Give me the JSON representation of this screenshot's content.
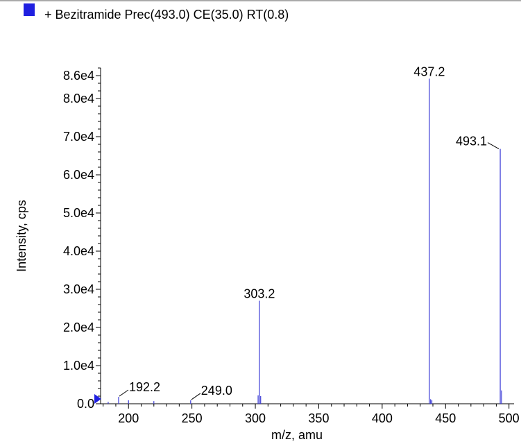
{
  "chart_data": {
    "type": "bar",
    "legend": {
      "label": "+ Bezitramide Prec(493.0) CE(35.0) RT(0.8)",
      "color": "#1f1fe0",
      "placement": "top-left"
    },
    "series": [
      {
        "name": "+ Bezitramide Prec(493.0) CE(35.0) RT(0.8)",
        "color": "#3b3bd6",
        "x": [
          184.0,
          192.2,
          200.0,
          220.0,
          249.0,
          302.2,
          303.2,
          304.2,
          437.2,
          438.2,
          439.2,
          493.1,
          494.1
        ],
        "y": [
          500,
          1800,
          900,
          700,
          900,
          2200,
          27000,
          2000,
          85200,
          1200,
          900,
          66800,
          3500
        ]
      }
    ],
    "peak_labels": [
      {
        "text": "192.2",
        "x": 192.2,
        "leader": true
      },
      {
        "text": "249.0",
        "x": 249.0,
        "leader": true
      },
      {
        "text": "303.2",
        "x": 303.2,
        "leader": false
      },
      {
        "text": "437.2",
        "x": 437.2,
        "leader": false
      },
      {
        "text": "493.1",
        "x": 493.1,
        "leader": true
      }
    ],
    "xlabel": "m/z, amu",
    "ylabel": "Intensity, cps",
    "xlim": [
      178,
      504
    ],
    "ylim": [
      0,
      88000
    ],
    "x_ticks": [
      200,
      250,
      300,
      350,
      400,
      450,
      500
    ],
    "x_tick_labels": [
      "200",
      "250",
      "300",
      "350",
      "400",
      "450",
      "500"
    ],
    "y_ticks": [
      0,
      10000,
      20000,
      30000,
      40000,
      50000,
      60000,
      70000,
      80000,
      86000
    ],
    "y_tick_labels": [
      "0.0",
      "1.0e4",
      "2.0e4",
      "3.0e4",
      "4.0e4",
      "5.0e4",
      "6.0e4",
      "7.0e4",
      "8.0e4",
      "8.6e4"
    ],
    "grid": false
  }
}
